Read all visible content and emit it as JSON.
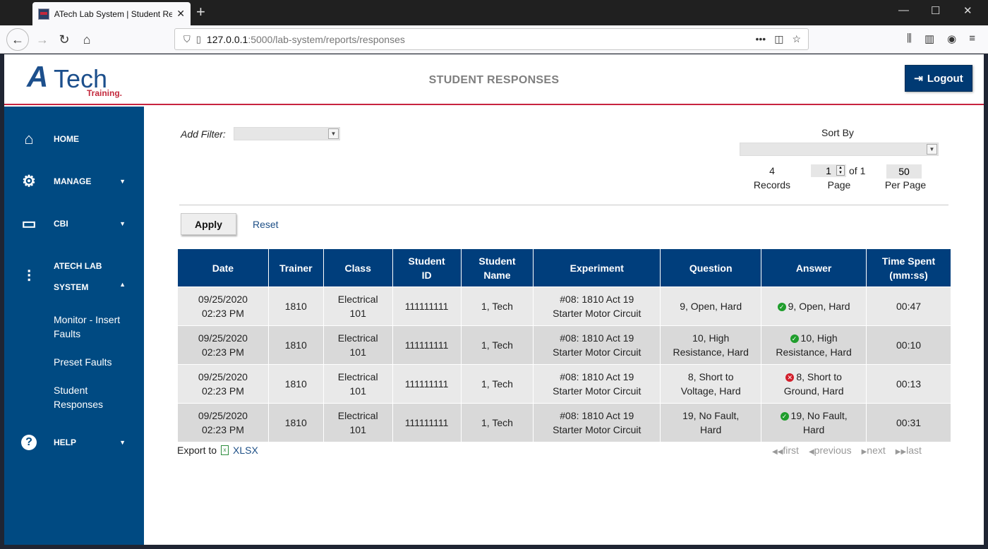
{
  "browser": {
    "tab_title": "ATech Lab System | Student Re",
    "url_host": "127.0.0.1",
    "url_path": ":5000/lab-system/reports/responses"
  },
  "header": {
    "logo_a": "A",
    "logo_tech": "Tech",
    "logo_sub": "Training.",
    "title": "STUDENT RESPONSES",
    "logout_label": "Logout"
  },
  "sidebar": {
    "items": [
      {
        "label": "HOME",
        "icon": "home-icon"
      },
      {
        "label": "MANAGE",
        "icon": "gear-icon"
      },
      {
        "label": "CBI",
        "icon": "monitor-icon"
      },
      {
        "label_line1": "ATECH LAB",
        "label_line2": "SYSTEM",
        "icon": "sliders-icon"
      },
      {
        "label": "HELP",
        "icon": "help-icon"
      }
    ],
    "subitems": [
      "Monitor - Insert Faults",
      "Preset Faults",
      "Student Responses"
    ]
  },
  "filters": {
    "add_filter_label": "Add Filter:",
    "sort_by_label": "Sort By",
    "records_count": "4",
    "records_label": "Records",
    "page_value": "1",
    "page_of": "of 1",
    "page_label": "Page",
    "per_page_value": "50",
    "per_page_label": "Per Page",
    "apply_label": "Apply",
    "reset_label": "Reset"
  },
  "table": {
    "headers": [
      "Date",
      "Trainer",
      "Class",
      "Student ID",
      "Student Name",
      "Experiment",
      "Question",
      "Answer",
      "Time Spent (mm:ss)"
    ],
    "rows": [
      {
        "date": "09/25/2020 02:23 PM",
        "trainer": "1810",
        "class": "Electrical 101",
        "student_id": "111111111",
        "student_name": "1, Tech",
        "experiment": "#08: 1810 Act 19 Starter Motor Circuit",
        "question": "9, Open, Hard",
        "answer": "9, Open, Hard",
        "correct": true,
        "time": "00:47"
      },
      {
        "date": "09/25/2020 02:23 PM",
        "trainer": "1810",
        "class": "Electrical 101",
        "student_id": "111111111",
        "student_name": "1, Tech",
        "experiment": "#08: 1810 Act 19 Starter Motor Circuit",
        "question": "10, High Resistance, Hard",
        "answer": "10, High Resistance, Hard",
        "correct": true,
        "time": "00:10"
      },
      {
        "date": "09/25/2020 02:23 PM",
        "trainer": "1810",
        "class": "Electrical 101",
        "student_id": "111111111",
        "student_name": "1, Tech",
        "experiment": "#08: 1810 Act 19 Starter Motor Circuit",
        "question": "8, Short to Voltage, Hard",
        "answer": "8, Short to Ground, Hard",
        "correct": false,
        "time": "00:13"
      },
      {
        "date": "09/25/2020 02:23 PM",
        "trainer": "1810",
        "class": "Electrical 101",
        "student_id": "111111111",
        "student_name": "1, Tech",
        "experiment": "#08: 1810 Act 19 Starter Motor Circuit",
        "question": "19, No Fault, Hard",
        "answer": "19, No Fault, Hard",
        "correct": true,
        "time": "00:31"
      }
    ]
  },
  "footer": {
    "export_label": "Export to",
    "xlsx_label": "XLSX",
    "pager": [
      "first",
      "previous",
      "next",
      "last"
    ]
  }
}
